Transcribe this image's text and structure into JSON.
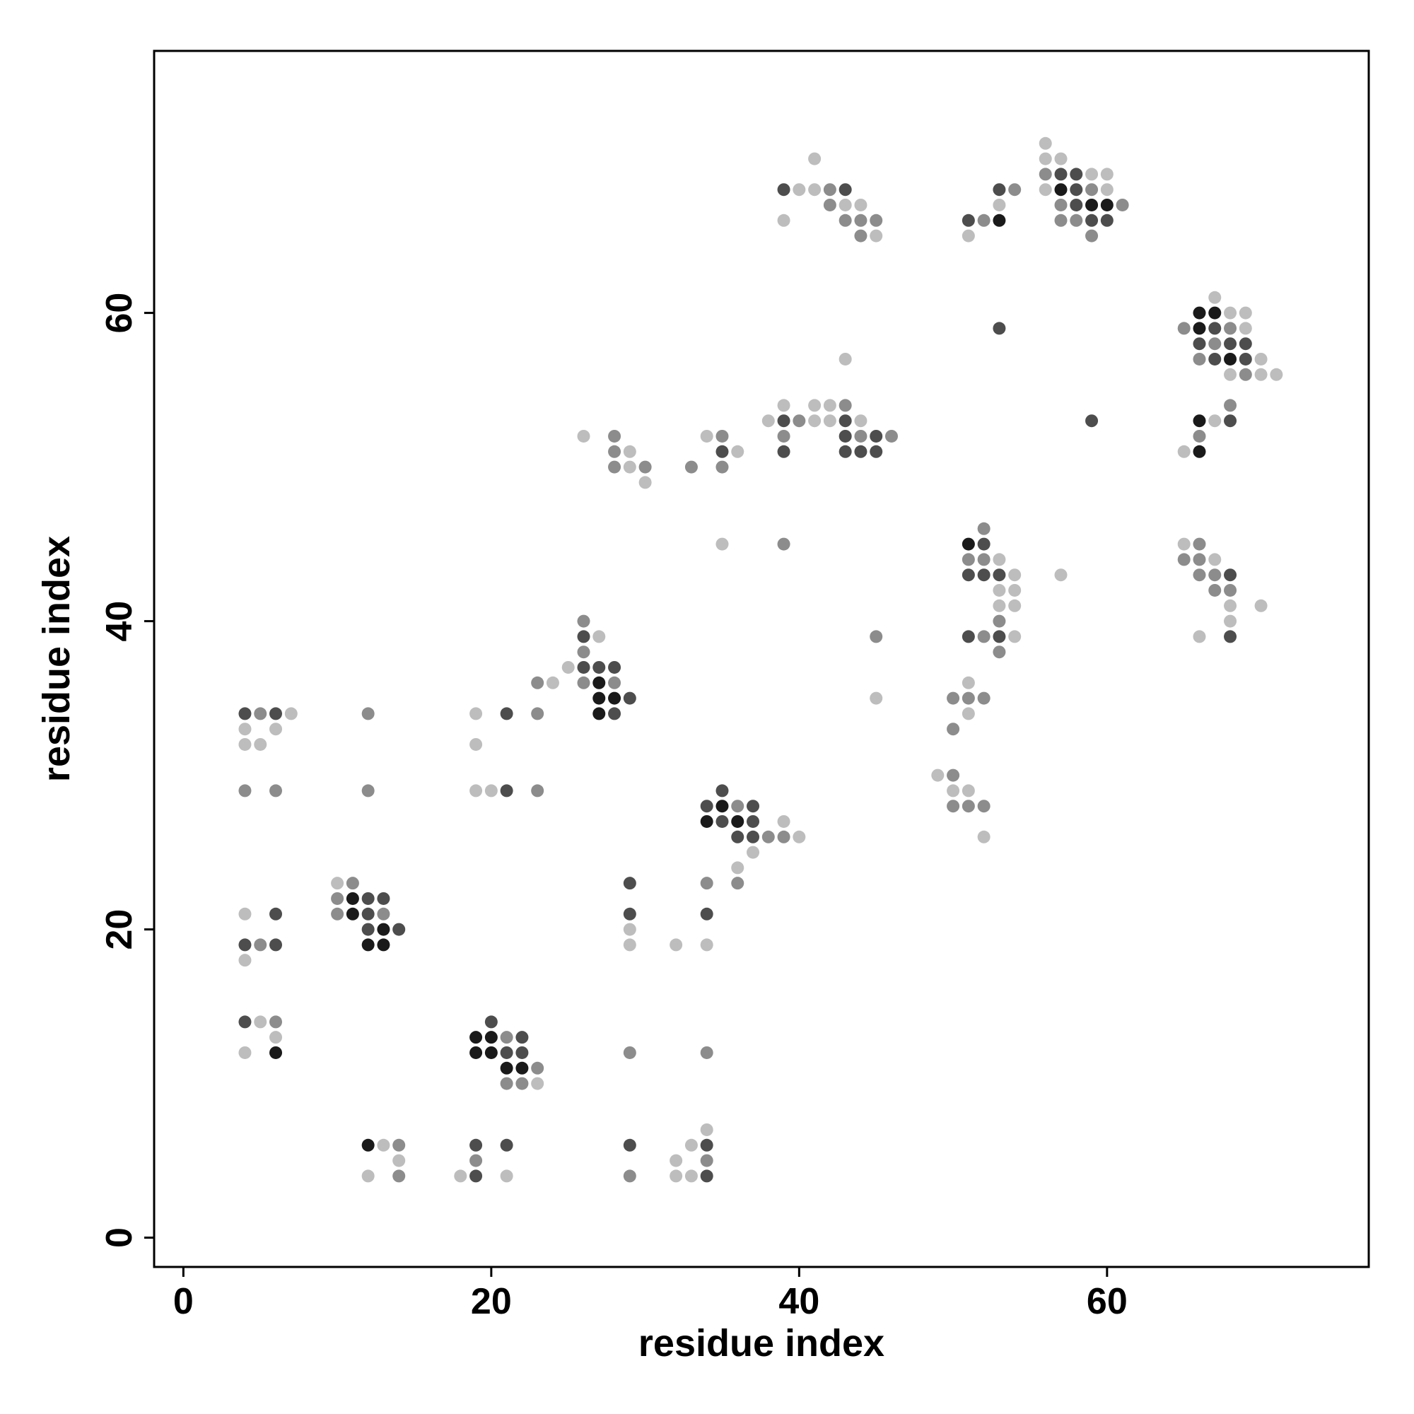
{
  "chart_data": {
    "type": "scatter",
    "xlabel": "residue index",
    "ylabel": "residue index",
    "xlim": [
      -1.9,
      77
    ],
    "ylim": [
      -1.9,
      77
    ],
    "xticks": [
      0,
      20,
      40,
      60
    ],
    "yticks": [
      0,
      20,
      40,
      60
    ],
    "series": [
      {
        "color": "#bdbdbd",
        "x": [
          12,
          18,
          21,
          32,
          33,
          14,
          32,
          13,
          33,
          34,
          23,
          4,
          6,
          5,
          4,
          29,
          32,
          34,
          29,
          4,
          10,
          36,
          37,
          40,
          52,
          39,
          19,
          20,
          50,
          51,
          49,
          4,
          5,
          19,
          4,
          6,
          7,
          19,
          51,
          45,
          24,
          51,
          25,
          27,
          54,
          66,
          68,
          53,
          54,
          68,
          70,
          53,
          54,
          54,
          57,
          53,
          67,
          35,
          65,
          30,
          29,
          29,
          36,
          65,
          26,
          34,
          38,
          41,
          42,
          44,
          67,
          39,
          41,
          42,
          68,
          70,
          71,
          43,
          70,
          69,
          68,
          69,
          67,
          45,
          51,
          39,
          43,
          44,
          53,
          40,
          41,
          56,
          60,
          59,
          60,
          41,
          56,
          57,
          56
        ],
        "values": [
          4,
          4,
          4,
          4,
          4,
          5,
          5,
          6,
          6,
          7,
          10,
          12,
          13,
          14,
          18,
          19,
          19,
          19,
          20,
          21,
          23,
          24,
          25,
          26,
          26,
          27,
          29,
          29,
          29,
          29,
          30,
          32,
          32,
          32,
          33,
          33,
          34,
          34,
          34,
          35,
          36,
          36,
          37,
          39,
          39,
          39,
          40,
          41,
          41,
          41,
          41,
          42,
          42,
          43,
          43,
          44,
          44,
          45,
          45,
          49,
          50,
          51,
          51,
          51,
          52,
          52,
          53,
          53,
          53,
          53,
          53,
          54,
          54,
          54,
          56,
          56,
          56,
          57,
          57,
          59,
          60,
          60,
          61,
          65,
          65,
          66,
          67,
          67,
          67,
          68,
          68,
          68,
          68,
          69,
          69,
          70,
          70,
          70,
          71
        ]
      },
      {
        "color": "#8c8c8c",
        "x": [
          14,
          29,
          19,
          34,
          14,
          21,
          22,
          23,
          29,
          34,
          21,
          6,
          5,
          10,
          13,
          10,
          11,
          34,
          36,
          38,
          39,
          36,
          50,
          51,
          52,
          4,
          6,
          12,
          23,
          50,
          50,
          5,
          12,
          23,
          50,
          51,
          52,
          23,
          26,
          28,
          26,
          53,
          45,
          52,
          26,
          53,
          67,
          68,
          66,
          67,
          51,
          52,
          65,
          66,
          39,
          66,
          52,
          28,
          30,
          33,
          35,
          28,
          28,
          35,
          39,
          44,
          46,
          66,
          40,
          43,
          68,
          69,
          66,
          67,
          65,
          68,
          44,
          59,
          43,
          44,
          45,
          52,
          57,
          58,
          42,
          57,
          61,
          42,
          54,
          59,
          56
        ],
        "values": [
          4,
          4,
          5,
          5,
          6,
          10,
          10,
          11,
          12,
          12,
          13,
          14,
          19,
          21,
          21,
          22,
          23,
          23,
          23,
          26,
          26,
          28,
          28,
          28,
          28,
          29,
          29,
          29,
          29,
          30,
          33,
          34,
          34,
          34,
          35,
          35,
          35,
          36,
          36,
          36,
          38,
          38,
          39,
          39,
          40,
          40,
          42,
          42,
          43,
          43,
          44,
          44,
          44,
          44,
          45,
          45,
          46,
          50,
          50,
          50,
          50,
          51,
          52,
          52,
          52,
          52,
          52,
          52,
          53,
          54,
          54,
          56,
          57,
          58,
          59,
          59,
          65,
          65,
          66,
          66,
          66,
          66,
          66,
          66,
          67,
          67,
          67,
          68,
          68,
          68,
          69
        ]
      },
      {
        "color": "#4d4d4d",
        "x": [
          19,
          34,
          19,
          21,
          29,
          34,
          21,
          22,
          22,
          4,
          20,
          4,
          6,
          12,
          14,
          6,
          12,
          29,
          34,
          12,
          13,
          29,
          36,
          37,
          35,
          37,
          34,
          37,
          21,
          35,
          4,
          6,
          21,
          28,
          29,
          26,
          27,
          28,
          26,
          51,
          53,
          68,
          51,
          52,
          53,
          68,
          52,
          35,
          39,
          43,
          44,
          45,
          43,
          45,
          39,
          43,
          59,
          68,
          67,
          69,
          66,
          68,
          69,
          53,
          67,
          51,
          59,
          60,
          58,
          39,
          43,
          53,
          58,
          57,
          58
        ],
        "values": [
          4,
          4,
          6,
          6,
          6,
          6,
          12,
          12,
          13,
          14,
          14,
          19,
          19,
          20,
          20,
          21,
          21,
          21,
          21,
          22,
          22,
          23,
          26,
          26,
          27,
          27,
          28,
          28,
          29,
          29,
          34,
          34,
          34,
          34,
          35,
          37,
          37,
          37,
          39,
          39,
          39,
          39,
          43,
          43,
          43,
          43,
          45,
          51,
          51,
          51,
          51,
          51,
          52,
          52,
          53,
          53,
          53,
          53,
          57,
          57,
          58,
          58,
          58,
          59,
          59,
          66,
          66,
          66,
          67,
          68,
          68,
          68,
          68,
          69,
          69
        ]
      },
      {
        "color": "#1a1a1a",
        "x": [
          12,
          21,
          22,
          6,
          19,
          20,
          19,
          20,
          12,
          13,
          13,
          11,
          11,
          34,
          36,
          35,
          27,
          27,
          28,
          27,
          51,
          66,
          66,
          68,
          66,
          66,
          67,
          53,
          59,
          60,
          57
        ],
        "values": [
          6,
          11,
          11,
          12,
          12,
          12,
          13,
          13,
          19,
          19,
          20,
          21,
          22,
          27,
          27,
          28,
          34,
          35,
          35,
          36,
          45,
          51,
          53,
          57,
          59,
          60,
          60,
          66,
          67,
          67,
          68
        ]
      }
    ]
  }
}
